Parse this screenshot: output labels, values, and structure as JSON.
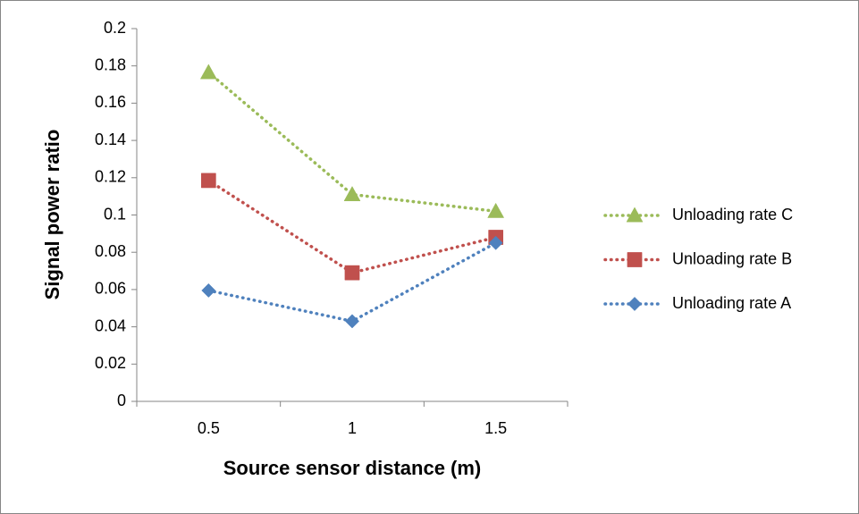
{
  "chart_data": {
    "type": "line",
    "x_label": "Source sensor distance (m)",
    "y_label": "Signal power ratio",
    "categories": [
      "0.5",
      "1",
      "1.5"
    ],
    "series": [
      {
        "name": "Unloading rate C",
        "color": "#9bbb59",
        "marker": "triangle",
        "values": [
          0.1765,
          0.111,
          0.102
        ]
      },
      {
        "name": "Unloading rate B",
        "color": "#c0504d",
        "marker": "square",
        "values": [
          0.1185,
          0.069,
          0.088
        ]
      },
      {
        "name": "Unloading rate A",
        "color": "#4f81bd",
        "marker": "diamond",
        "values": [
          0.0595,
          0.043,
          0.085
        ]
      }
    ],
    "ylim": [
      0,
      0.2
    ],
    "yticks": [
      0,
      0.02,
      0.04,
      0.06,
      0.08,
      0.1,
      0.12,
      0.14,
      0.16,
      0.18,
      0.2
    ],
    "grid": false,
    "legend": "right"
  }
}
